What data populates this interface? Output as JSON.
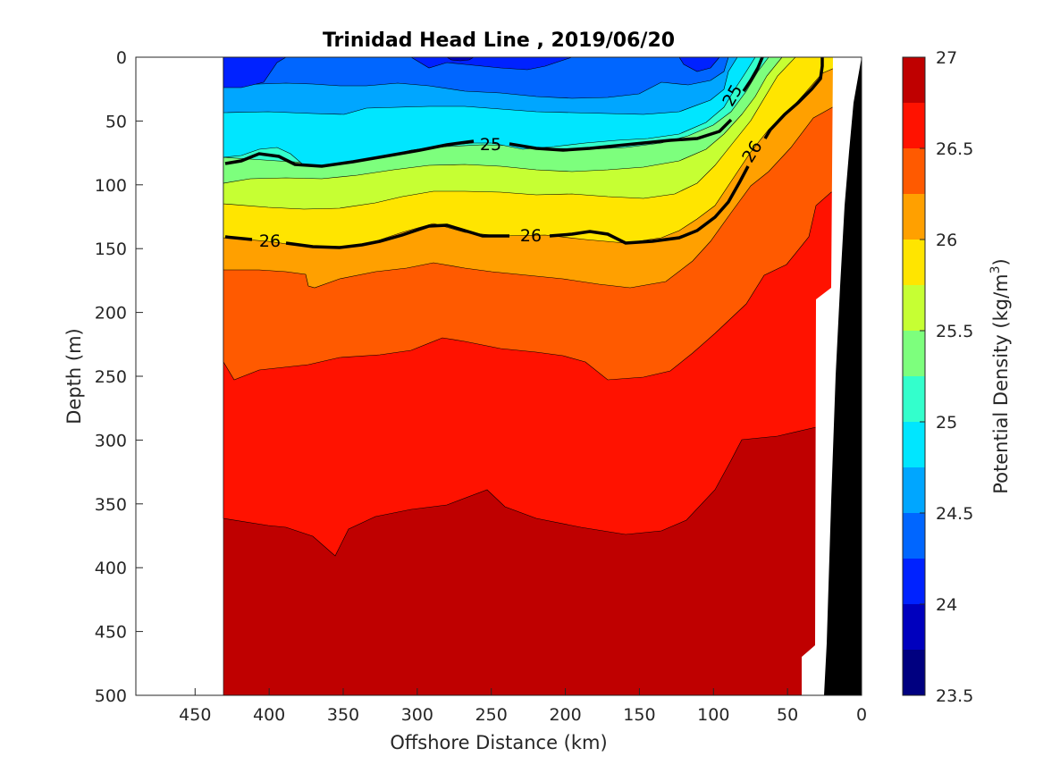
{
  "chart_data": {
    "type": "contour",
    "title": "Trinidad Head Line , 2019/06/20",
    "xlabel": "Offshore Distance (km)",
    "ylabel": "Depth (m)",
    "x_reversed": true,
    "y_reversed": true,
    "xlim": [
      490,
      0
    ],
    "ylim": [
      0,
      500
    ],
    "xticks": [
      450,
      400,
      350,
      300,
      250,
      200,
      150,
      100,
      50,
      0
    ],
    "yticks": [
      0,
      50,
      100,
      150,
      200,
      250,
      300,
      350,
      400,
      450,
      500
    ],
    "data_extent_km": [
      430,
      0
    ],
    "colorbar": {
      "label": "Potential Density (kg/m",
      "label_superscript": "3",
      "label_suffix": ")",
      "range": [
        23.5,
        27
      ],
      "tick_values": [
        27,
        26.5,
        26,
        25.5,
        25,
        24.5,
        24,
        23.5
      ],
      "tick_labels": [
        "27",
        "26.5",
        "26",
        "25.5",
        "25",
        "24.5",
        "24",
        "23.5"
      ],
      "levels": [
        23.5,
        23.75,
        24,
        24.25,
        24.5,
        24.75,
        25,
        25.25,
        25.5,
        25.75,
        26,
        26.25,
        26.5,
        26.75,
        27
      ],
      "colors": [
        "#000080",
        "#0000be",
        "#0022ff",
        "#0066ff",
        "#00a6ff",
        "#00e6ff",
        "#33ffcc",
        "#7dff7d",
        "#c6ff33",
        "#ffe500",
        "#ffa000",
        "#ff5a00",
        "#ff1200",
        "#bf0000"
      ]
    },
    "labeled_contours": [
      {
        "level": 25,
        "label": "25"
      },
      {
        "level": 26,
        "label": "26"
      }
    ],
    "bottom_mask_color": "#000000"
  }
}
